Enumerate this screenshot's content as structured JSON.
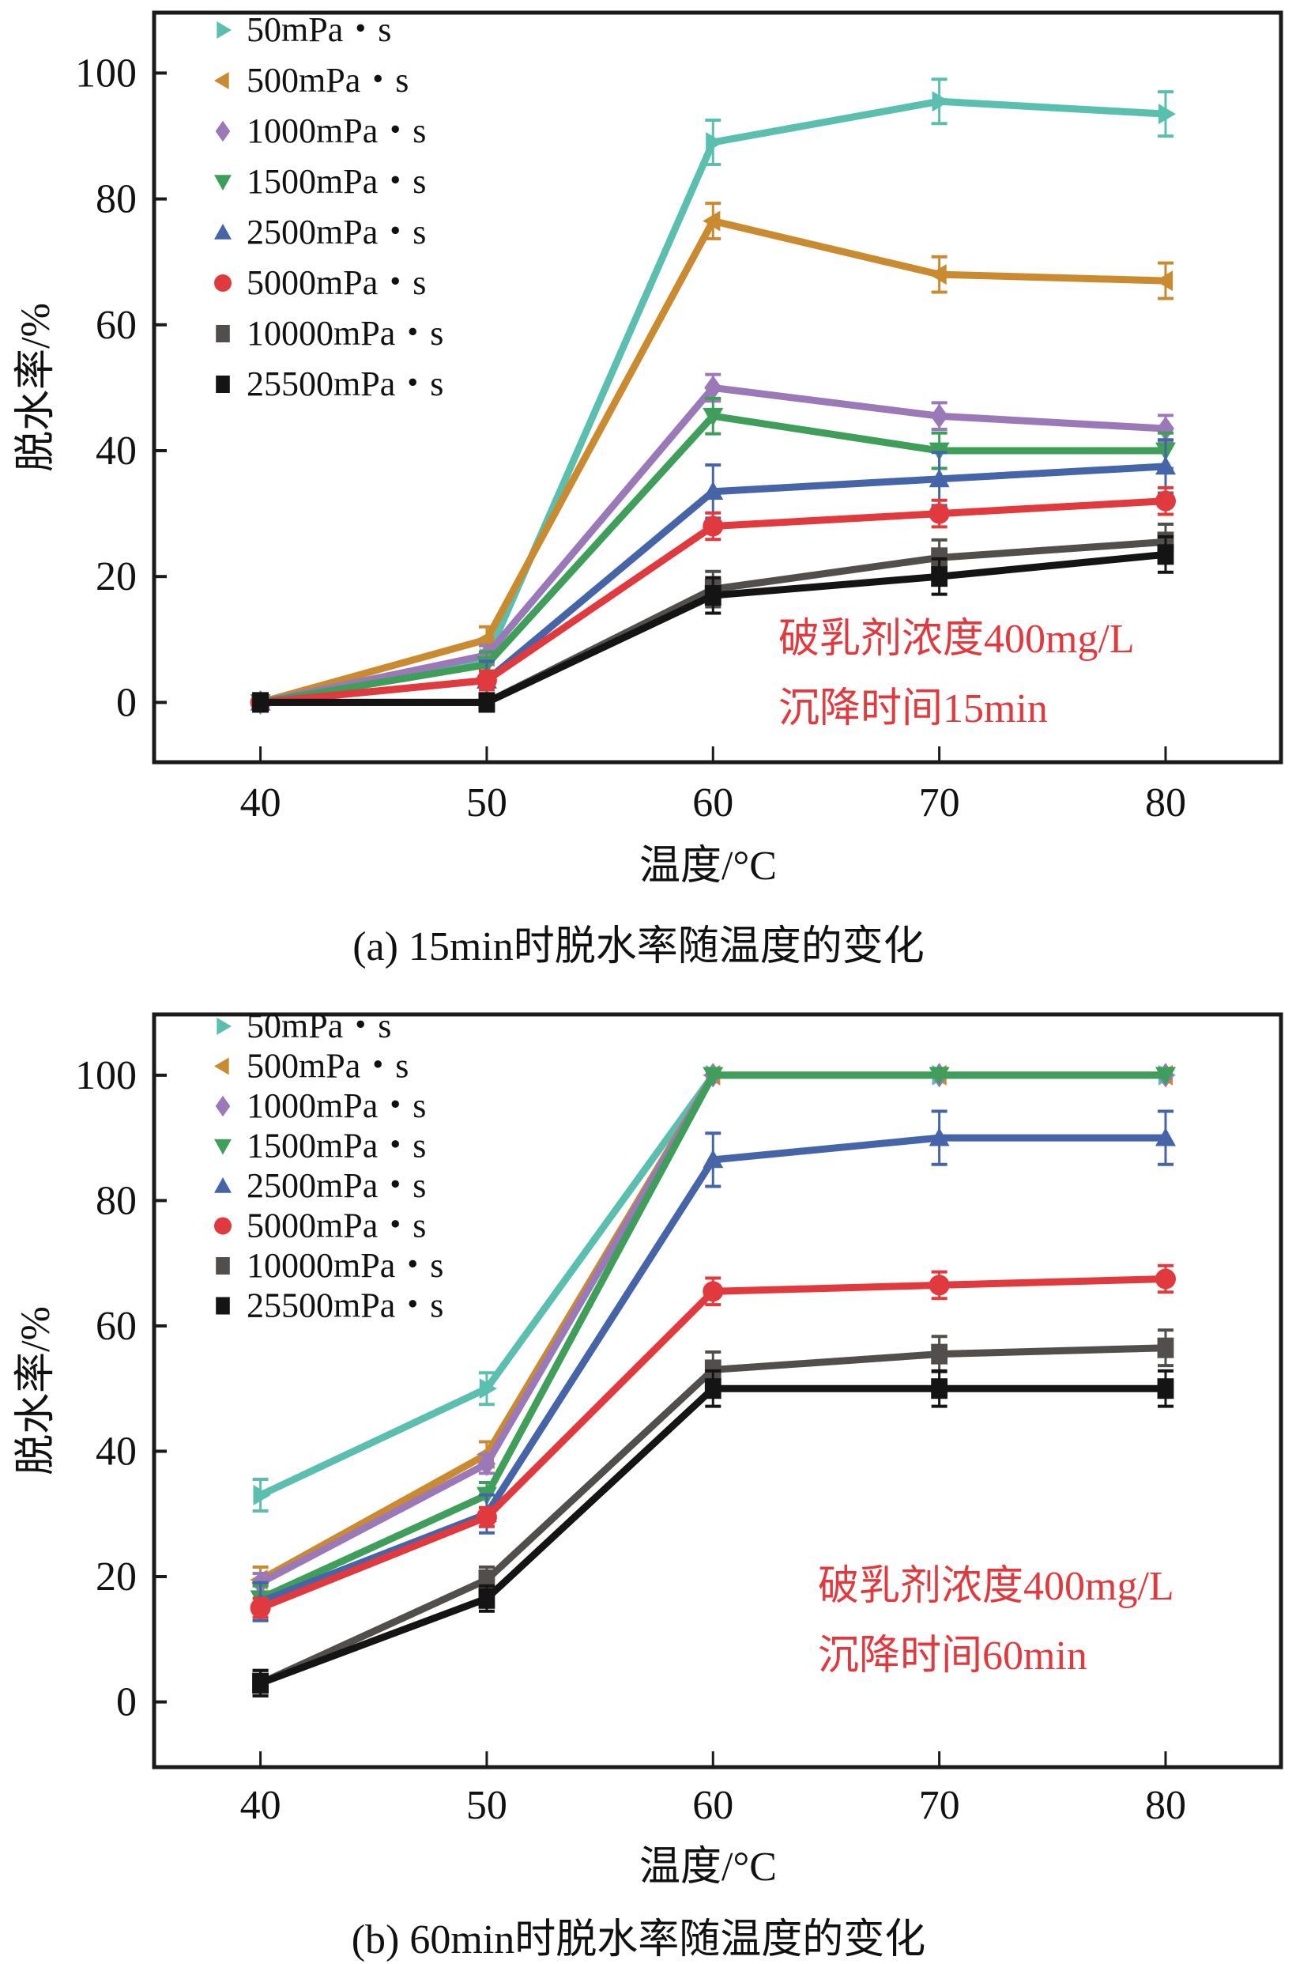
{
  "chart_data": [
    {
      "type": "line",
      "panel": "a",
      "caption": "(a) 15min时脱水率随温度的变化",
      "xlabel": "温度/°C",
      "ylabel": "脱水率/%",
      "x": [
        40,
        50,
        60,
        70,
        80
      ],
      "xticks": [
        "40",
        "50",
        "60",
        "70",
        "80"
      ],
      "yticks": [
        "0",
        "20",
        "40",
        "60",
        "80",
        "100"
      ],
      "xlim": [
        35.3,
        85.1
      ],
      "ylim": [
        -9.5,
        109.6
      ],
      "grid": false,
      "legend_position": "top-left",
      "annotation": [
        "破乳剂浓度400mg/L",
        "沉降时间15min"
      ],
      "series": [
        {
          "name": "50mPa・s",
          "color": "#5bbfb0",
          "marker": "triangle-right",
          "values": [
            0,
            7,
            89,
            95.5,
            93.5
          ]
        },
        {
          "name": "500mPa・s",
          "color": "#c98a30",
          "marker": "triangle-left",
          "values": [
            0,
            10,
            76.5,
            68,
            67
          ]
        },
        {
          "name": "1000mPa・s",
          "color": "#9b78b8",
          "marker": "diamond",
          "values": [
            0,
            7.5,
            50,
            45.5,
            43.5
          ]
        },
        {
          "name": "1500mPa・s",
          "color": "#3f9f5a",
          "marker": "triangle-down",
          "values": [
            0,
            6,
            45.5,
            40,
            40
          ]
        },
        {
          "name": "2500mPa・s",
          "color": "#4565a8",
          "marker": "triangle-up",
          "values": [
            0,
            3.5,
            33.5,
            35.5,
            37.5
          ]
        },
        {
          "name": "5000mPa・s",
          "color": "#e03a3e",
          "marker": "circle",
          "values": [
            0,
            3.5,
            28,
            30,
            32
          ]
        },
        {
          "name": "10000mPa・s",
          "color": "#524e4b",
          "marker": "square",
          "values": [
            0,
            0,
            18,
            23,
            25.5
          ]
        },
        {
          "name": "25500mPa・s",
          "color": "#141414",
          "marker": "square",
          "values": [
            0,
            0,
            17,
            20,
            23.5
          ]
        }
      ]
    },
    {
      "type": "line",
      "panel": "b",
      "caption": "(b) 60min时脱水率随温度的变化",
      "xlabel": "温度/°C",
      "ylabel": "脱水率/%",
      "x": [
        40,
        50,
        60,
        70,
        80
      ],
      "xticks": [
        "40",
        "50",
        "60",
        "70",
        "80"
      ],
      "yticks": [
        "0",
        "20",
        "40",
        "60",
        "80",
        "100"
      ],
      "xlim": [
        35.3,
        85.1
      ],
      "ylim": [
        -10.4,
        109.7
      ],
      "grid": false,
      "legend_position": "top-left",
      "annotation": [
        "破乳剂浓度400mg/L",
        "沉降时间60min"
      ],
      "series": [
        {
          "name": "50mPa・s",
          "color": "#5bbfb0",
          "marker": "triangle-right",
          "values": [
            33,
            50,
            100,
            100,
            100
          ]
        },
        {
          "name": "500mPa・s",
          "color": "#c98a30",
          "marker": "triangle-left",
          "values": [
            19.5,
            39.5,
            100,
            100,
            100
          ]
        },
        {
          "name": "1000mPa・s",
          "color": "#9b78b8",
          "marker": "diamond",
          "values": [
            19,
            38,
            100,
            100,
            100
          ]
        },
        {
          "name": "1500mPa・s",
          "color": "#3f9f5a",
          "marker": "triangle-down",
          "values": [
            16.5,
            33,
            100,
            100,
            100
          ]
        },
        {
          "name": "2500mPa・s",
          "color": "#4565a8",
          "marker": "triangle-up",
          "values": [
            16,
            30,
            86.5,
            90,
            90
          ]
        },
        {
          "name": "5000mPa・s",
          "color": "#e03a3e",
          "marker": "circle",
          "values": [
            15,
            29.5,
            65.5,
            66.5,
            67.5
          ]
        },
        {
          "name": "10000mPa・s",
          "color": "#524e4b",
          "marker": "square",
          "values": [
            3,
            19.5,
            53,
            55.5,
            56.5
          ]
        },
        {
          "name": "25500mPa・s",
          "color": "#141414",
          "marker": "square",
          "values": [
            3,
            16.5,
            50,
            50,
            50
          ]
        }
      ]
    }
  ]
}
